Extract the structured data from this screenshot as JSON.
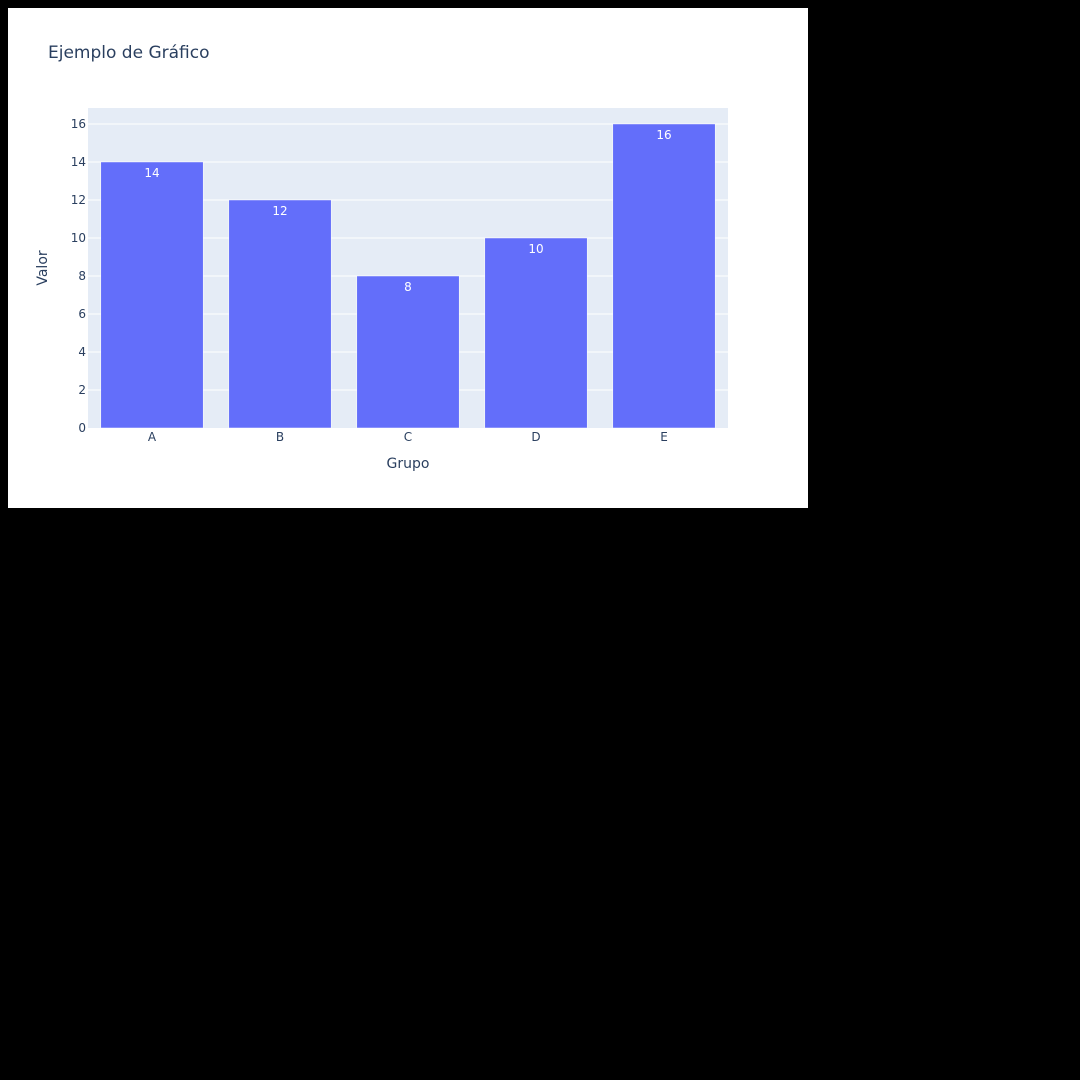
{
  "chart_data": {
    "type": "bar",
    "title": "Ejemplo de Gráfico",
    "xlabel": "Grupo",
    "ylabel": "Valor",
    "categories": [
      "A",
      "B",
      "C",
      "D",
      "E"
    ],
    "values": [
      14,
      12,
      8,
      10,
      16
    ],
    "data_labels": [
      "14",
      "12",
      "8",
      "10",
      "16"
    ],
    "ylim": [
      0,
      16.84
    ],
    "yticks": [
      0,
      2,
      4,
      6,
      8,
      10,
      12,
      14,
      16
    ],
    "ytick_labels": [
      "0",
      "2",
      "4",
      "6",
      "8",
      "10",
      "12",
      "14",
      "16"
    ],
    "grid": true,
    "legend": "none"
  },
  "colors": {
    "bar": "#636efa",
    "plot_background": "#e5ecf6",
    "paper_background": "#ffffff",
    "gridline": "#ffffff",
    "text": "#2a3f5f",
    "data_label": "#ffffff"
  }
}
